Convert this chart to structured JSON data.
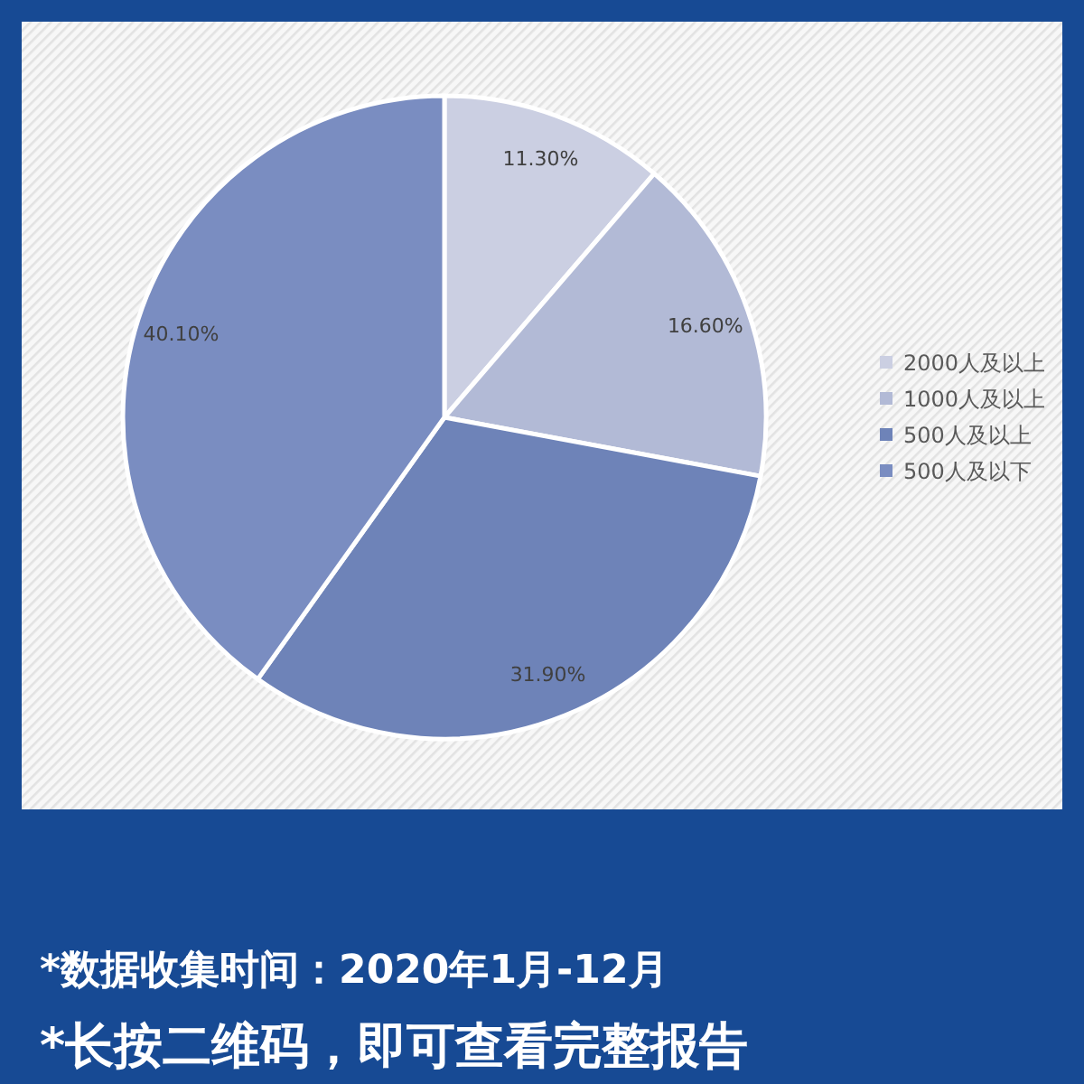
{
  "chart_data": {
    "type": "pie",
    "categories": [
      "2000人及以上",
      "1000人及以上",
      "500人及以上",
      "500人及以下"
    ],
    "values": [
      11.3,
      16.6,
      31.9,
      40.1
    ],
    "colors": [
      "#cbcfe2",
      "#b2bad6",
      "#6e83b8",
      "#7a8dc1"
    ],
    "value_labels": [
      "11.30%",
      "16.60%",
      "31.90%",
      "40.10%"
    ],
    "legend": "right",
    "annotations": [
      "*数据收集时间：2020年1月-12月",
      "*长按二维码，即可查看完整报告"
    ]
  }
}
